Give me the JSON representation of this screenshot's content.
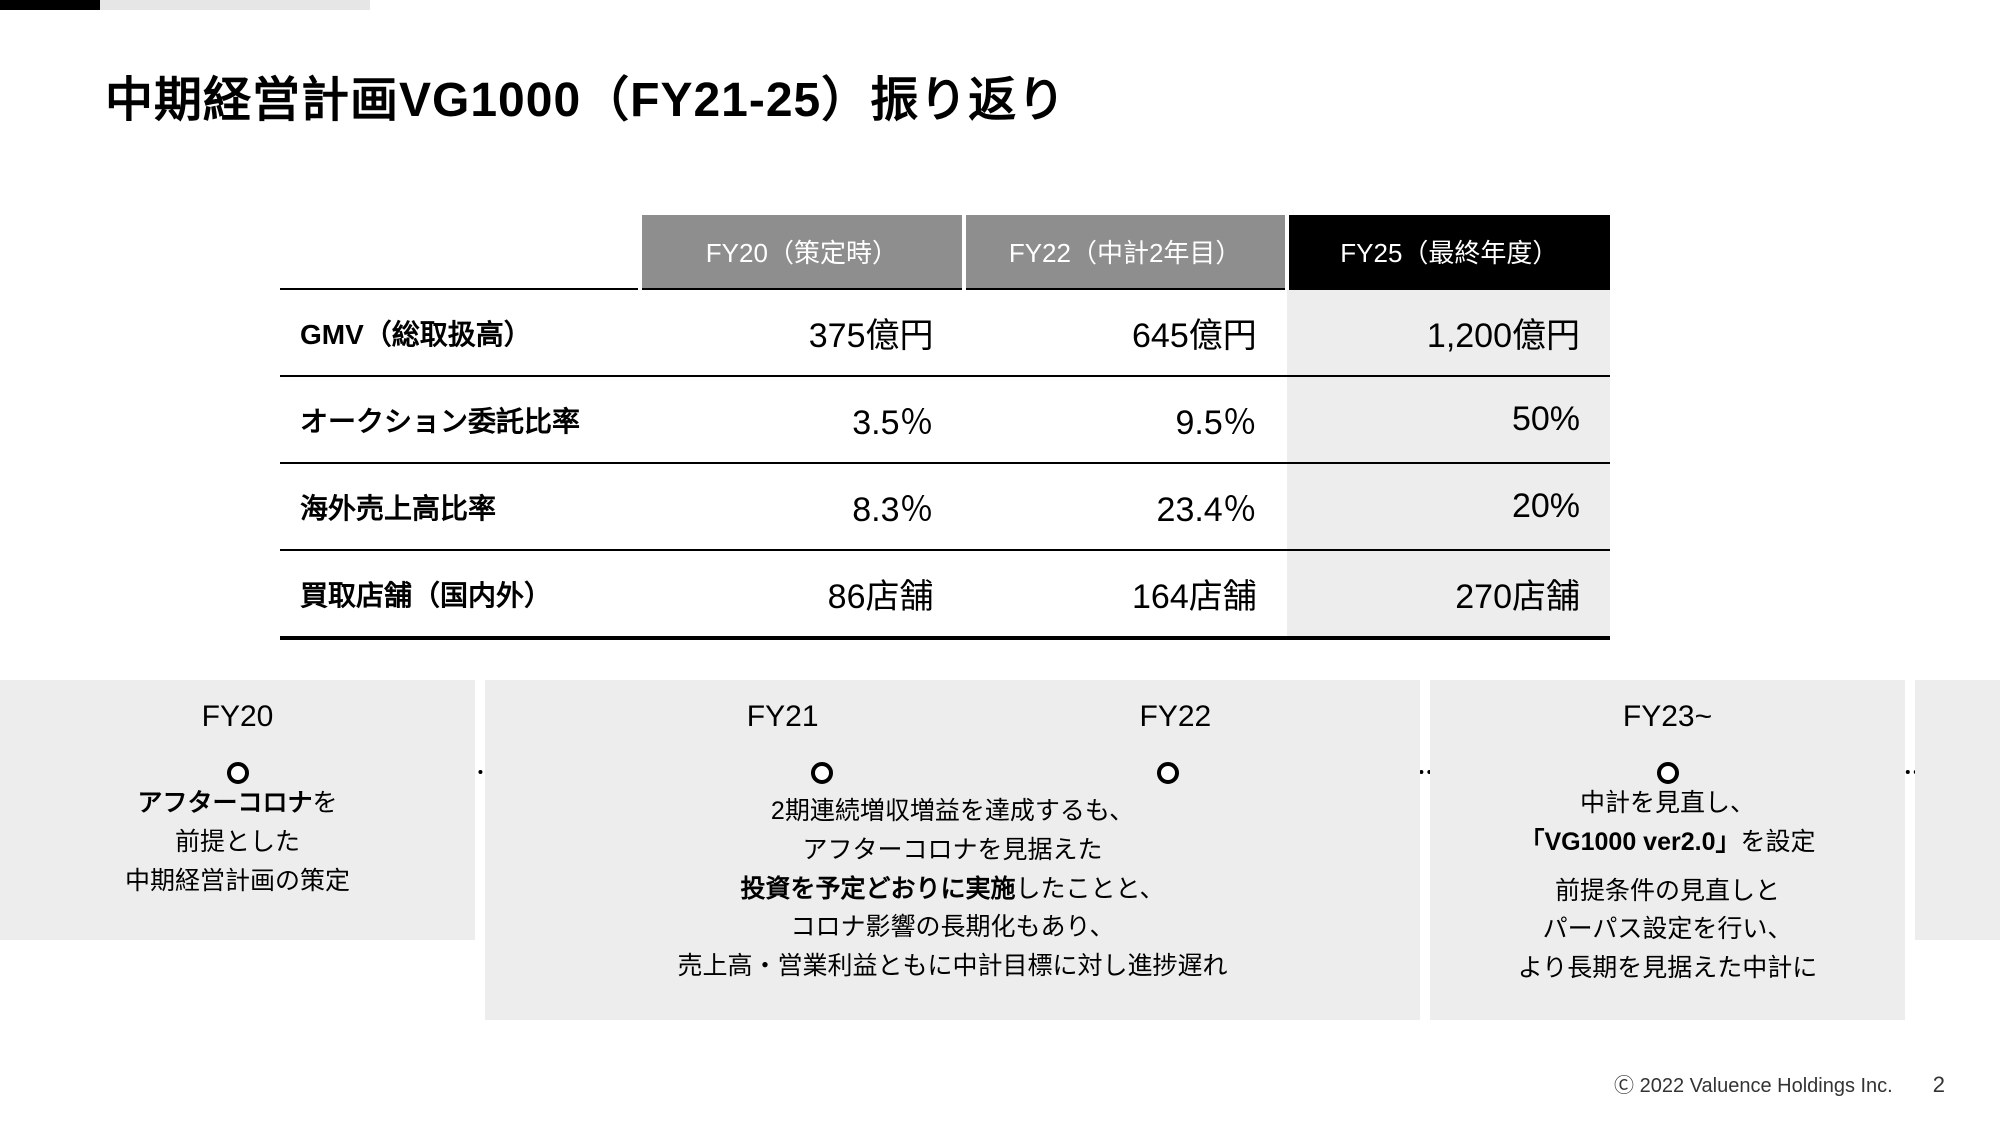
{
  "title": "中期経営計画VG1000（FY21-25）振り返り",
  "table": {
    "headers": [
      "FY20（策定時）",
      "FY22（中計2年目）",
      "FY25（最終年度）"
    ],
    "header_colors": [
      "#8e8e8e",
      "#8e8e8e",
      "#000000"
    ],
    "rows": [
      {
        "label": "GMV（総取扱高）",
        "cells": [
          "375億円",
          "645億円",
          "1,200億円"
        ]
      },
      {
        "label": "オークション委託比率",
        "cells": [
          "3.5％",
          "9.5％",
          "50%"
        ]
      },
      {
        "label": "海外売上高比率",
        "cells": [
          "8.3％",
          "23.4％",
          "20%"
        ]
      },
      {
        "label": "買取店舗（国内外）",
        "cells": [
          "86店舗",
          "164店舗",
          "270店舗"
        ]
      }
    ],
    "shade_column_bg": "#ededed"
  },
  "timeline": {
    "card1": {
      "year": "FY20",
      "body_html": "<b>アフターコロナ</b>を<br>前提とした<br>中期経営計画の策定"
    },
    "card2": {
      "year_a": "FY21",
      "year_b": "FY22",
      "body_html": "2期連続増収増益を達成するも、<br>アフターコロナを見据えた<br><b>投資を予定どおりに実施</b>したことと、<br>コロナ影響の長期化もあり、<br>売上高・営業利益ともに中計目標に対し進捗遅れ"
    },
    "card3": {
      "year": "FY23~",
      "body_html": "中計を見直し、<br><b>「VG1000 ver2.0」</b>を設定<br><span style='display:block;height:10px'></span>前提条件の見直しと<br>パーパス設定を行い、<br>より長期を見据えた中計に"
    },
    "card_bg": "#ededed"
  },
  "footer": {
    "copyright": "Ⓒ 2022 Valuence Holdings Inc.",
    "page": "2"
  }
}
